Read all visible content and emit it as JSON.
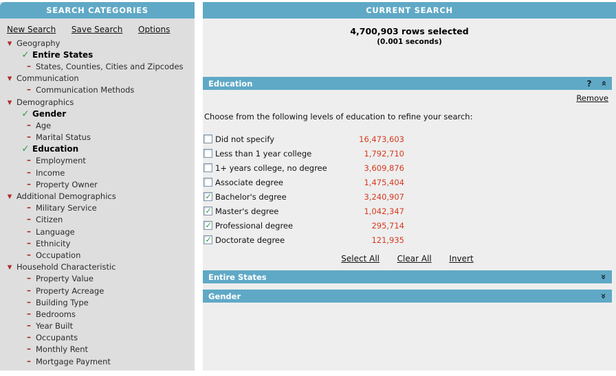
{
  "colors": {
    "accent_teal": "#5FA9C6",
    "count_red": "#D6391F",
    "check_green": "#2D9C44",
    "marker_red": "#B22222",
    "sidebar_bg": "#DEDEDE",
    "panel_bg": "#EEEEEE"
  },
  "sidebar": {
    "title": "SEARCH CATEGORIES",
    "links": [
      {
        "label": "New Search"
      },
      {
        "label": "Save Search"
      },
      {
        "label": "Options"
      }
    ],
    "tree": [
      {
        "label": "Geography",
        "type": "category",
        "icon": "triangle-down"
      },
      {
        "label": "Entire States",
        "type": "check",
        "icon": "check"
      },
      {
        "label": "States, Counties, Cities and Zipcodes",
        "type": "dash",
        "icon": "dash"
      },
      {
        "label": "Communication",
        "type": "category",
        "icon": "triangle-down"
      },
      {
        "label": "Communication Methods",
        "type": "dash",
        "icon": "dash"
      },
      {
        "label": "Demographics",
        "type": "category",
        "icon": "triangle-down"
      },
      {
        "label": "Gender",
        "type": "check",
        "icon": "check"
      },
      {
        "label": "Age",
        "type": "dash",
        "icon": "dash"
      },
      {
        "label": "Marital Status",
        "type": "dash",
        "icon": "dash"
      },
      {
        "label": "Education",
        "type": "check",
        "icon": "check"
      },
      {
        "label": "Employment",
        "type": "dash",
        "icon": "dash"
      },
      {
        "label": "Income",
        "type": "dash",
        "icon": "dash"
      },
      {
        "label": "Property Owner",
        "type": "dash",
        "icon": "dash"
      },
      {
        "label": "Additional Demographics",
        "type": "category",
        "icon": "triangle-down"
      },
      {
        "label": "Military Service",
        "type": "dash",
        "icon": "dash"
      },
      {
        "label": "Citizen",
        "type": "dash",
        "icon": "dash"
      },
      {
        "label": "Language",
        "type": "dash",
        "icon": "dash"
      },
      {
        "label": "Ethnicity",
        "type": "dash",
        "icon": "dash"
      },
      {
        "label": "Occupation",
        "type": "dash",
        "icon": "dash"
      },
      {
        "label": "Household Characteristic",
        "type": "category",
        "icon": "triangle-down"
      },
      {
        "label": "Property Value",
        "type": "dash",
        "icon": "dash"
      },
      {
        "label": "Property Acreage",
        "type": "dash",
        "icon": "dash"
      },
      {
        "label": "Building Type",
        "type": "dash",
        "icon": "dash"
      },
      {
        "label": "Bedrooms",
        "type": "dash",
        "icon": "dash"
      },
      {
        "label": "Year Built",
        "type": "dash",
        "icon": "dash"
      },
      {
        "label": "Occupants",
        "type": "dash",
        "icon": "dash"
      },
      {
        "label": "Monthly Rent",
        "type": "dash",
        "icon": "dash"
      },
      {
        "label": "Mortgage Payment",
        "type": "dash",
        "icon": "dash"
      }
    ]
  },
  "main": {
    "title": "CURRENT SEARCH",
    "summary": {
      "rows_selected": "4,700,903 rows selected",
      "time": "(0.001 seconds)"
    },
    "education": {
      "title": "Education",
      "help_icon": "?",
      "remove_label": "Remove",
      "instruction": "Choose from the following levels of education to refine your search:",
      "options": [
        {
          "label": "Did not specify",
          "count": "16,473,603",
          "state": "unchecked"
        },
        {
          "label": "Less than 1 year college",
          "count": "1,792,710",
          "state": "unchecked"
        },
        {
          "label": "1+ years college, no degree",
          "count": "3,609,876",
          "state": "unchecked"
        },
        {
          "label": "Associate degree",
          "count": "1,475,404",
          "state": "unchecked"
        },
        {
          "label": "Bachelor's degree",
          "count": "3,240,907",
          "state": "checked"
        },
        {
          "label": "Master's degree",
          "count": "1,042,347",
          "state": "checked"
        },
        {
          "label": "Professional degree",
          "count": "295,714",
          "state": "checked"
        },
        {
          "label": "Doctorate degree",
          "count": "121,935",
          "state": "checked"
        }
      ],
      "actions": [
        {
          "label": "Select All"
        },
        {
          "label": "Clear All"
        },
        {
          "label": "Invert"
        }
      ]
    },
    "collapsed_sections": [
      {
        "title": "Entire States"
      },
      {
        "title": "Gender"
      }
    ]
  }
}
